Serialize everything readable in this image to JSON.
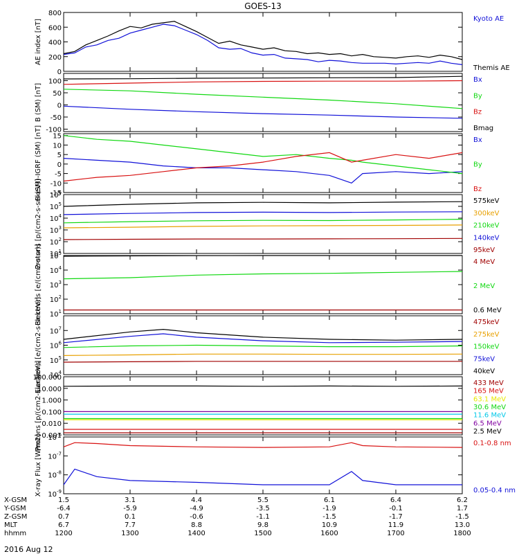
{
  "title": "GOES-13",
  "date_label": "2016 Aug 12",
  "colors": {
    "blue": "#1010d8",
    "red": "#d81010",
    "green": "#10d810",
    "black": "#000000",
    "orange": "#e8a000",
    "cyan": "#00c8e8",
    "yellow": "#e8e800",
    "purple": "#8000a0",
    "dkred": "#a00000"
  },
  "chart_data": [
    {
      "type": "line",
      "panel": "AE index",
      "ylabel": "AE index [nT]",
      "ylim": [
        0,
        800
      ],
      "yticks": [
        "0",
        "200",
        "400",
        "600",
        "800"
      ],
      "series": [
        {
          "name": "Kyoto AE",
          "color": "blue",
          "x": [
            1200,
            1210,
            1220,
            1230,
            1240,
            1250,
            1300,
            1310,
            1320,
            1330,
            1340,
            1350,
            1400,
            1410,
            1420,
            1430,
            1440,
            1450,
            1500,
            1510,
            1520,
            1530,
            1540,
            1550,
            1600,
            1610,
            1620,
            1630,
            1640,
            1650,
            1700,
            1710,
            1720,
            1730,
            1740,
            1750,
            1800
          ],
          "values": [
            230,
            250,
            330,
            360,
            420,
            450,
            520,
            560,
            600,
            640,
            620,
            560,
            500,
            420,
            320,
            300,
            310,
            250,
            220,
            230,
            180,
            170,
            160,
            130,
            150,
            140,
            120,
            110,
            110,
            110,
            100,
            110,
            120,
            110,
            140,
            110,
            90
          ]
        },
        {
          "name": "Themis AE",
          "color": "black",
          "x": [
            1200,
            1210,
            1220,
            1230,
            1240,
            1250,
            1300,
            1310,
            1320,
            1330,
            1340,
            1350,
            1400,
            1410,
            1420,
            1430,
            1440,
            1450,
            1500,
            1510,
            1520,
            1530,
            1540,
            1550,
            1600,
            1610,
            1620,
            1630,
            1640,
            1650,
            1700,
            1710,
            1720,
            1730,
            1740,
            1750,
            1800
          ],
          "values": [
            240,
            270,
            360,
            420,
            480,
            550,
            610,
            590,
            640,
            660,
            680,
            610,
            540,
            460,
            380,
            410,
            360,
            330,
            300,
            320,
            280,
            270,
            240,
            250,
            230,
            240,
            210,
            230,
            200,
            190,
            180,
            200,
            210,
            190,
            220,
            200,
            160
          ]
        }
      ]
    },
    {
      "type": "line",
      "panel": "B (SM)",
      "ylabel": "B (SM) [nT]",
      "ylim": [
        -110,
        130
      ],
      "yticks": [
        "-100",
        "-50",
        "0",
        "50",
        "100"
      ],
      "series": [
        {
          "name": "Bx",
          "color": "blue",
          "x": [
            1200,
            1300,
            1400,
            1500,
            1600,
            1700,
            1800
          ],
          "values": [
            -5,
            -18,
            -28,
            -36,
            -42,
            -50,
            -55
          ]
        },
        {
          "name": "By",
          "color": "green",
          "x": [
            1200,
            1300,
            1400,
            1500,
            1600,
            1700,
            1800
          ],
          "values": [
            65,
            58,
            44,
            32,
            20,
            5,
            -15
          ]
        },
        {
          "name": "Bz",
          "color": "red",
          "x": [
            1200,
            1300,
            1400,
            1500,
            1600,
            1700,
            1800
          ],
          "values": [
            85,
            90,
            95,
            97,
            98,
            98,
            100
          ]
        },
        {
          "name": "Bmag",
          "color": "black",
          "x": [
            1200,
            1300,
            1400,
            1500,
            1600,
            1700,
            1800
          ],
          "values": [
            107,
            108,
            110,
            111,
            112,
            113,
            118
          ]
        }
      ]
    },
    {
      "type": "line",
      "panel": "B (SM)-IGRF (SM)",
      "ylabel": "B (SM)-IGRF (SM) [nT]",
      "ylim": [
        -15,
        16
      ],
      "yticks": [
        "-15",
        "-10",
        "-5",
        "0",
        "5",
        "10",
        "15"
      ],
      "series": [
        {
          "name": "Bx",
          "color": "blue",
          "x": [
            1200,
            1230,
            1300,
            1330,
            1400,
            1430,
            1500,
            1530,
            1600,
            1620,
            1630,
            1700,
            1730,
            1800
          ],
          "values": [
            3,
            2,
            1,
            -1,
            -2,
            -2,
            -3,
            -4,
            -6,
            -10,
            -5,
            -4,
            -5,
            -4
          ]
        },
        {
          "name": "By",
          "color": "green",
          "x": [
            1200,
            1230,
            1300,
            1330,
            1400,
            1430,
            1500,
            1530,
            1600,
            1620,
            1630,
            1700,
            1730,
            1800
          ],
          "values": [
            15,
            13,
            12,
            10,
            8,
            6,
            4,
            5,
            3,
            2,
            1,
            -1,
            -3,
            -5
          ]
        },
        {
          "name": "Bz",
          "color": "red",
          "x": [
            1200,
            1230,
            1300,
            1330,
            1400,
            1430,
            1500,
            1530,
            1600,
            1620,
            1630,
            1700,
            1730,
            1800
          ],
          "values": [
            -9,
            -7,
            -6,
            -4,
            -2,
            -1,
            1,
            4,
            6,
            1,
            2,
            5,
            3,
            6
          ]
        }
      ]
    },
    {
      "type": "line",
      "panel": "Protons",
      "ylabel": "Protons [p/(cm2-s-sr-keV)]",
      "scale": "log",
      "ylim": [
        10.0,
        1000000.0
      ],
      "yticks": [
        "10^1",
        "10^2",
        "10^3",
        "10^4",
        "10^5",
        "10^6"
      ],
      "series": [
        {
          "name": "575keV",
          "color": "black",
          "x": [
            1200,
            1300,
            1400,
            1500,
            1600,
            1700,
            1800
          ],
          "values": [
            100000,
            150000,
            200000,
            220000,
            200000,
            230000,
            250000
          ]
        },
        {
          "name": "300keV",
          "color": "orange",
          "x": [
            1200,
            1300,
            1400,
            1500,
            1600,
            1700,
            1800
          ],
          "values": [
            1500,
            1700,
            2000,
            2200,
            2300,
            2400,
            2600
          ]
        },
        {
          "name": "210keV",
          "color": "green",
          "x": [
            1200,
            1300,
            1400,
            1500,
            1600,
            1700,
            1800
          ],
          "values": [
            4000,
            5000,
            6000,
            6500,
            6200,
            7000,
            8000
          ]
        },
        {
          "name": "140keV",
          "color": "blue",
          "x": [
            1200,
            1300,
            1400,
            1500,
            1600,
            1700,
            1800
          ],
          "values": [
            20000,
            25000,
            30000,
            32000,
            30000,
            33000,
            35000
          ]
        },
        {
          "name": "95keV",
          "color": "dkred",
          "x": [
            1200,
            1300,
            1400,
            1500,
            1600,
            1700,
            1800
          ],
          "values": [
            150,
            160,
            170,
            170,
            175,
            180,
            190
          ]
        }
      ]
    },
    {
      "type": "line",
      "panel": "Electrons (MeV)",
      "ylabel": "Electrons [e/(cm2-s-sr)]",
      "scale": "log",
      "ylim": [
        10.0,
        100000.0
      ],
      "yticks": [
        "10^1",
        "10^2",
        "10^3",
        "10^4",
        "10^5"
      ],
      "series": [
        {
          "name": "4 MeV",
          "color": "dkred",
          "x": [
            1200,
            1300,
            1400,
            1500,
            1600,
            1700,
            1800
          ],
          "values": [
            18,
            18,
            18,
            18,
            18,
            18,
            18
          ]
        },
        {
          "name": "2 MeV",
          "color": "green",
          "x": [
            1200,
            1300,
            1400,
            1500,
            1600,
            1700,
            1800
          ],
          "values": [
            2500,
            3000,
            4500,
            5500,
            6000,
            7000,
            8000
          ]
        },
        {
          "name": "0.6 MeV",
          "color": "black",
          "x": [
            1200,
            1300,
            1400,
            1500,
            1600,
            1700,
            1800
          ],
          "values": [
            90000,
            95000,
            98000,
            100000,
            100000,
            100000,
            100000
          ]
        }
      ]
    },
    {
      "type": "line",
      "panel": "Electrons (keV)",
      "ylabel": "Electrons [e/(cm2-s-sr-keV)]",
      "scale": "log",
      "ylim": [
        10000.0,
        100000000.0
      ],
      "yticks": [
        "10^4",
        "10^5",
        "10^6",
        "10^7"
      ],
      "series": [
        {
          "name": "475keV",
          "color": "dkred",
          "x": [
            1200,
            1300,
            1400,
            1500,
            1600,
            1700,
            1800
          ],
          "values": [
            70000,
            75000,
            80000,
            80000,
            80000,
            80000,
            80000
          ]
        },
        {
          "name": "275keV",
          "color": "orange",
          "x": [
            1200,
            1300,
            1400,
            1500,
            1600,
            1700,
            1800
          ],
          "values": [
            200000,
            220000,
            250000,
            250000,
            240000,
            240000,
            250000
          ]
        },
        {
          "name": "150keV",
          "color": "green",
          "x": [
            1200,
            1300,
            1400,
            1500,
            1600,
            1700,
            1800
          ],
          "values": [
            700000,
            900000,
            1000000,
            900000,
            800000,
            800000,
            900000
          ]
        },
        {
          "name": "75keV",
          "color": "blue",
          "x": [
            1200,
            1300,
            1330,
            1400,
            1500,
            1600,
            1700,
            1800
          ],
          "values": [
            1500000,
            4000000,
            6000000,
            3500000,
            2000000,
            1500000,
            1600000,
            1800000
          ]
        },
        {
          "name": "40keV",
          "color": "black",
          "x": [
            1200,
            1300,
            1330,
            1400,
            1500,
            1600,
            1700,
            1800
          ],
          "values": [
            2500000,
            8000000,
            12000000,
            7000000,
            3500000,
            2500000,
            2200000,
            2500000
          ]
        }
      ]
    },
    {
      "type": "line",
      "panel": "Protons (MeV)",
      "ylabel": "Protons [p/(cm2-s-sr-keV)]",
      "scale": "log",
      "ylim": [
        0.001,
        100
      ],
      "yticks": [
        "0.001",
        "0.010",
        "0.100",
        "1.000",
        "10.000",
        "100.000"
      ],
      "series": [
        {
          "name": "433 MeV",
          "color": "dkred",
          "x": [
            1200,
            1800
          ],
          "values": [
            0.0015,
            0.0015
          ]
        },
        {
          "name": "165 MeV",
          "color": "red",
          "x": [
            1200,
            1800
          ],
          "values": [
            0.003,
            0.003
          ]
        },
        {
          "name": "63.1 MeV",
          "color": "yellow",
          "x": [
            1200,
            1800
          ],
          "values": [
            0.02,
            0.02
          ]
        },
        {
          "name": "30.6 MeV",
          "color": "green",
          "x": [
            1200,
            1800
          ],
          "values": [
            0.025,
            0.025
          ]
        },
        {
          "name": "11.6 MeV",
          "color": "cyan",
          "x": [
            1200,
            1800
          ],
          "values": [
            0.06,
            0.06
          ]
        },
        {
          "name": "6.5 MeV",
          "color": "purple",
          "x": [
            1200,
            1800
          ],
          "values": [
            0.1,
            0.1
          ]
        },
        {
          "name": "2.5 MeV",
          "color": "black",
          "x": [
            1200,
            1300,
            1400,
            1500,
            1600,
            1700,
            1800
          ],
          "values": [
            15,
            16,
            16,
            15,
            16,
            15,
            16
          ]
        }
      ]
    },
    {
      "type": "line",
      "panel": "X-ray Flux",
      "ylabel": "X-ray Flux [W/m2]",
      "scale": "log",
      "ylim": [
        1e-09,
        1e-06
      ],
      "yticks": [
        "10^-9",
        "10^-8",
        "10^-7",
        "10^-6"
      ],
      "series": [
        {
          "name": "0.1-0.8 nm",
          "color": "red",
          "x": [
            1200,
            1210,
            1230,
            1300,
            1400,
            1500,
            1600,
            1620,
            1630,
            1700,
            1800
          ],
          "values": [
            3e-07,
            5e-07,
            4.5e-07,
            3.5e-07,
            3e-07,
            2.8e-07,
            3e-07,
            5e-07,
            3.5e-07,
            3e-07,
            2.8e-07
          ]
        },
        {
          "name": "0.05-0.4 nm",
          "color": "blue",
          "x": [
            1200,
            1210,
            1230,
            1300,
            1400,
            1500,
            1600,
            1620,
            1630,
            1700,
            1800
          ],
          "values": [
            3e-09,
            2e-08,
            8e-09,
            5e-09,
            4e-09,
            3e-09,
            3e-09,
            1.5e-08,
            5e-09,
            3e-09,
            3e-09
          ]
        }
      ]
    }
  ],
  "ephemeris": {
    "rows": [
      {
        "label": "X-GSM",
        "values": [
          "1.5",
          "3.1",
          "4.4",
          "5.5",
          "6.1",
          "6.4",
          "6.2"
        ]
      },
      {
        "label": "Y-GSM",
        "values": [
          "-6.4",
          "-5.9",
          "-4.9",
          "-3.5",
          "-1.9",
          "-0.1",
          "1.7"
        ]
      },
      {
        "label": "Z-GSM",
        "values": [
          "0.7",
          "0.1",
          "-0.6",
          "-1.1",
          "-1.5",
          "-1.7",
          "-1.5"
        ]
      },
      {
        "label": "MLT",
        "values": [
          "6.7",
          "7.7",
          "8.8",
          "9.8",
          "10.9",
          "11.9",
          "13.0"
        ]
      },
      {
        "label": "hhmm",
        "values": [
          "1200",
          "1300",
          "1400",
          "1500",
          "1600",
          "1700",
          "1800"
        ]
      }
    ]
  }
}
